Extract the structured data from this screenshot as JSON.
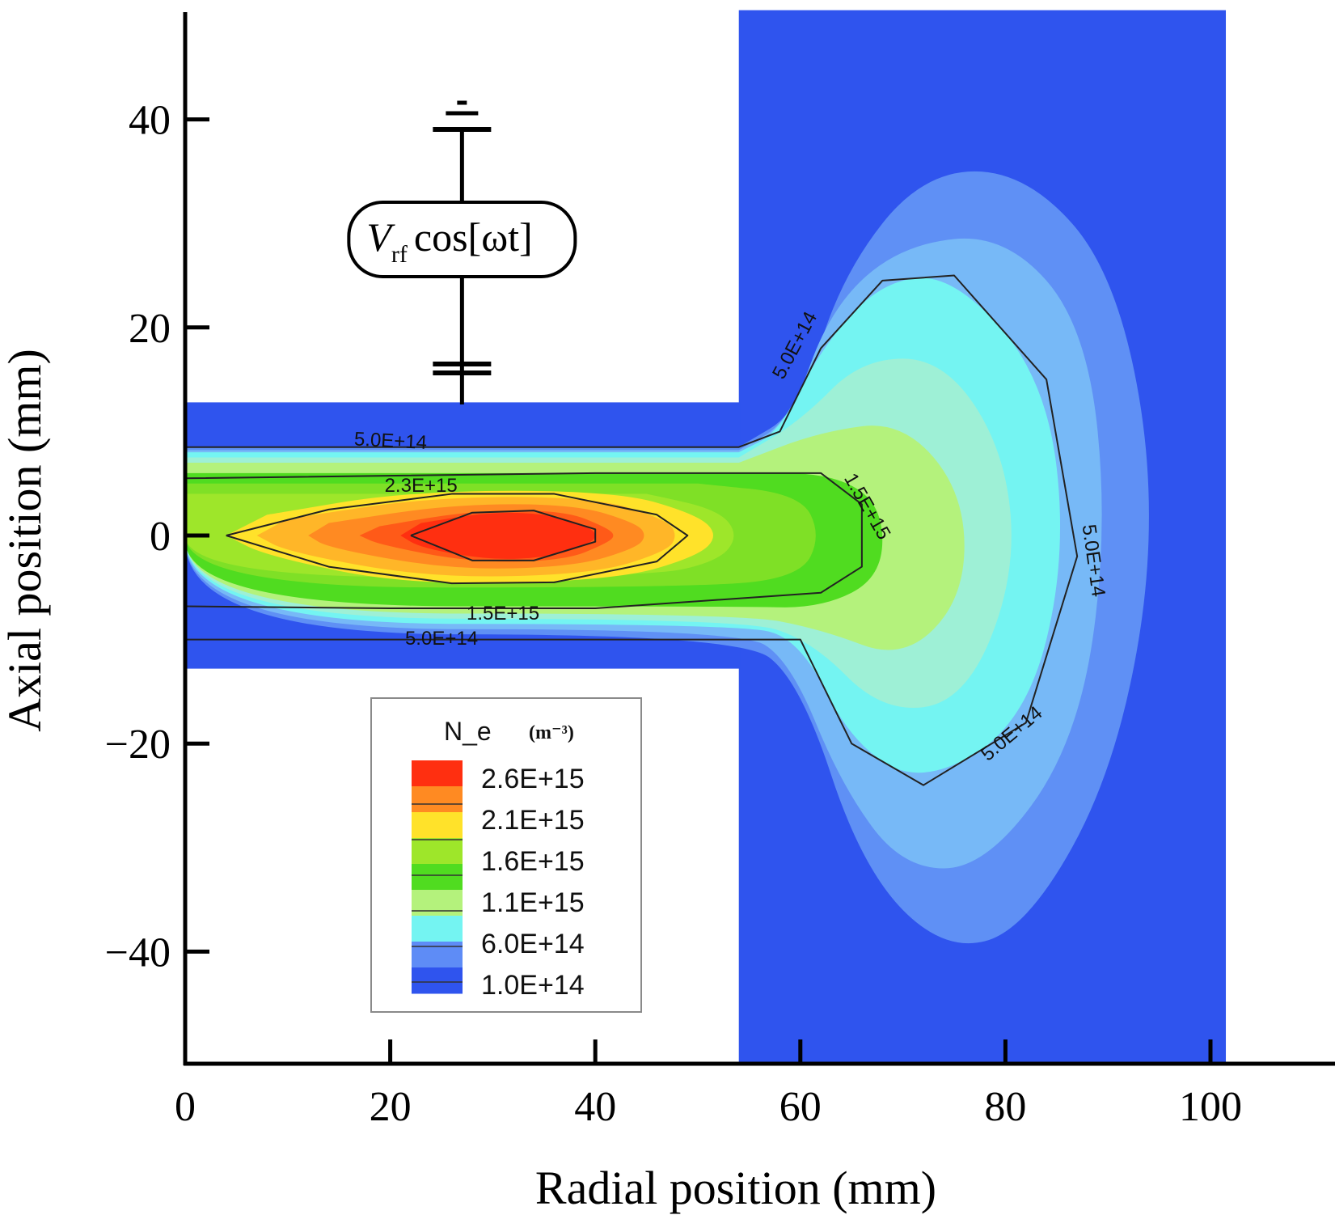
{
  "chart_data": {
    "type": "heatmap",
    "title": "",
    "xlabel": "Radial position (mm)",
    "ylabel": "Axial position (mm)",
    "xlim": [
      0,
      110
    ],
    "ylim": [
      -51,
      51
    ],
    "x_ticks": [
      0,
      20,
      40,
      60,
      80,
      100
    ],
    "x_tick_labels": [
      "0",
      "20",
      "40",
      "60",
      "80",
      "100"
    ],
    "y_ticks": [
      -40,
      -20,
      0,
      20,
      40
    ],
    "y_tick_labels": [
      "−40",
      "−20",
      "0",
      "20",
      "40"
    ],
    "geometry": {
      "tube_radial_range_mm": [
        0,
        54
      ],
      "tube_axial_range_mm": [
        -12.8,
        12.8
      ],
      "chamber_radial_range_mm": [
        54,
        101.5
      ],
      "chamber_axial_range_mm": [
        -51,
        50.5
      ]
    },
    "quantity": "N_e",
    "unit": "(m⁻³)",
    "legend": {
      "title": "N_e",
      "unit": "(m⁻³)",
      "entries": [
        "2.6E+15",
        "2.1E+15",
        "1.6E+15",
        "1.1E+15",
        "6.0E+14",
        "1.0E+14"
      ],
      "colors": [
        "#ff2f10",
        "#ff8a22",
        "#ffe22a",
        "#9ee62a",
        "#50dc20",
        "#b4f27c",
        "#74f4f2",
        "#5e8cf6",
        "#2f54ee"
      ]
    },
    "contour_labels": [
      {
        "text": "5.0E+14",
        "r": 20,
        "z": 8.5
      },
      {
        "text": "2.3E+15",
        "r": 23,
        "z": 4.2
      },
      {
        "text": "1.5E+15",
        "r": 66,
        "z": 2.5
      },
      {
        "text": "1.5E+15",
        "r": 31,
        "z": -8.1
      },
      {
        "text": "5.0E+14",
        "r": 25,
        "z": -10.5
      },
      {
        "text": "5.0E+14",
        "r": 60,
        "z": 18
      },
      {
        "text": "5.0E+14",
        "r": 88,
        "z": -2.5
      },
      {
        "text": "5.0E+14",
        "r": 81,
        "z": -19.5
      }
    ],
    "source_annotation": {
      "text_main": "V",
      "text_sub": "rf",
      "text_rest": "cos[ωt]",
      "r_mm": 27
    }
  }
}
